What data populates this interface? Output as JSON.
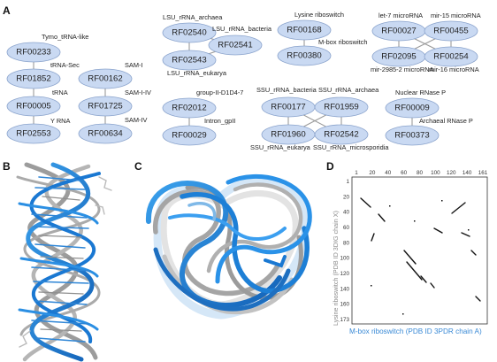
{
  "panel_labels": {
    "a": "A",
    "b": "B",
    "c": "C",
    "d": "D"
  },
  "network": {
    "nodes": {
      "n_RF00233": "RF00233",
      "n_RF01852": "RF01852",
      "n_RF00005": "RF00005",
      "n_RF02553": "RF02553",
      "n_RF00162": "RF00162",
      "n_RF01725": "RF01725",
      "n_RF00634": "RF00634",
      "n_RF02540": "RF02540",
      "n_RF02541": "RF02541",
      "n_RF02543": "RF02543",
      "n_RF02012": "RF02012",
      "n_RF00029": "RF00029",
      "n_RF00168": "RF00168",
      "n_RF00380": "RF00380",
      "n_RF00177": "RF00177",
      "n_RF01959": "RF01959",
      "n_RF01960": "RF01960",
      "n_RF02542": "RF02542",
      "n_RF00027": "RF00027",
      "n_RF00455": "RF00455",
      "n_RF02095": "RF02095",
      "n_RF00254": "RF00254",
      "n_RF00009": "RF00009",
      "n_RF00373": "RF00373"
    },
    "annotations": {
      "tymo": "Tymo_tRNA-like",
      "trna_sec": "tRNA-Sec",
      "trna": "tRNA",
      "yrna": "Y RNA",
      "sam1": "SAM-I",
      "sam14": "SAM-I-IV",
      "sam4": "SAM-IV",
      "lsu_arch": "LSU_rRNA_archaea",
      "lsu_bact": "LSU_rRNA_bacteria",
      "lsu_euk": "LSU_rRNA_eukarya",
      "group2": "group-II-D1D4-7",
      "intron": "Intron_gpII",
      "lysine": "Lysine riboswitch",
      "mbox": "M-box riboswitch",
      "ssu_bact": "SSU_rRNA_bacteria",
      "ssu_arch": "SSU_rRNA_archaea",
      "ssu_euk": "SSU_rRNA_eukarya",
      "ssu_micro": "SSU_rRNA_microsporidia",
      "let7": "let-7 microRNA",
      "mir15": "mir-15 microRNA",
      "mir2985": "mir-2985-2 microRNA",
      "mir16": "mir-16 microRNA",
      "nuclear": "Nuclear RNase P",
      "archaeal": "Archaeal RNase P"
    }
  },
  "contact_map": {
    "x_ticks": [
      "1",
      "20",
      "40",
      "60",
      "80",
      "100",
      "120",
      "140",
      "161"
    ],
    "y_ticks": [
      "1",
      "20",
      "40",
      "60",
      "80",
      "100",
      "120",
      "140",
      "160",
      "173"
    ],
    "x_label": "M-box riboswitch (PDB ID 3PDR chain A)",
    "y_label": "Lysine riboswitch (PDB ID 3DIG chain X)"
  }
}
